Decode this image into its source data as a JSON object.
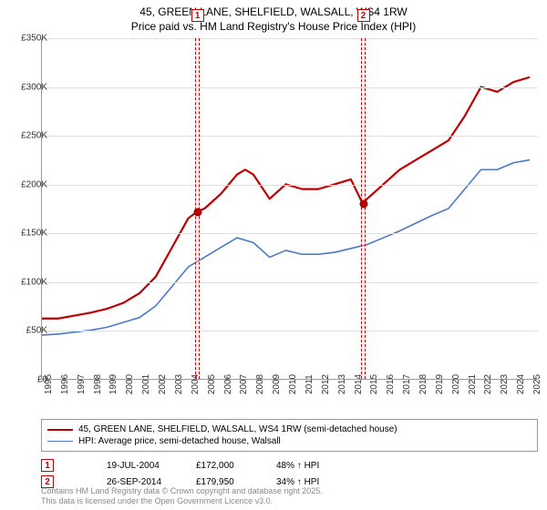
{
  "title_line1": "45, GREEN LANE, SHELFIELD, WALSALL, WS4 1RW",
  "title_line2": "Price paid vs. HM Land Registry's House Price Index (HPI)",
  "chart": {
    "type": "line",
    "background_color": "#ffffff",
    "grid_color": "#e0e0e0",
    "axis_color": "#999999",
    "x_min": 1995,
    "x_max": 2025.5,
    "y_min": 0,
    "y_max": 350000,
    "y_ticks": [
      0,
      50000,
      100000,
      150000,
      200000,
      250000,
      300000,
      350000
    ],
    "y_tick_labels": [
      "£0",
      "£50K",
      "£100K",
      "£150K",
      "£200K",
      "£250K",
      "£300K",
      "£350K"
    ],
    "x_ticks": [
      1995,
      1996,
      1997,
      1998,
      1999,
      2000,
      2001,
      2002,
      2003,
      2004,
      2005,
      2006,
      2007,
      2008,
      2009,
      2010,
      2011,
      2012,
      2013,
      2014,
      2015,
      2016,
      2017,
      2018,
      2019,
      2020,
      2021,
      2022,
      2023,
      2024,
      2025
    ],
    "label_fontsize": 10,
    "title_fontsize": 12,
    "line_width_red": 2.2,
    "line_width_blue": 1.6,
    "color_red": "#c00000",
    "color_blue": "#4a7ac7",
    "series_red": {
      "label": "45, GREEN LANE, SHELFIELD, WALSALL, WS4 1RW (semi-detached house)",
      "points": [
        [
          1995,
          62000
        ],
        [
          1996,
          62000
        ],
        [
          1997,
          65000
        ],
        [
          1998,
          68000
        ],
        [
          1999,
          72000
        ],
        [
          2000,
          78000
        ],
        [
          2001,
          88000
        ],
        [
          2002,
          105000
        ],
        [
          2003,
          135000
        ],
        [
          2004,
          165000
        ],
        [
          2004.55,
          172000
        ],
        [
          2005,
          175000
        ],
        [
          2006,
          190000
        ],
        [
          2007,
          210000
        ],
        [
          2007.5,
          215000
        ],
        [
          2008,
          210000
        ],
        [
          2009,
          185000
        ],
        [
          2010,
          200000
        ],
        [
          2011,
          195000
        ],
        [
          2012,
          195000
        ],
        [
          2013,
          200000
        ],
        [
          2014,
          205000
        ],
        [
          2014.73,
          179950
        ],
        [
          2015,
          185000
        ],
        [
          2016,
          200000
        ],
        [
          2017,
          215000
        ],
        [
          2018,
          225000
        ],
        [
          2019,
          235000
        ],
        [
          2020,
          245000
        ],
        [
          2021,
          270000
        ],
        [
          2022,
          300000
        ],
        [
          2023,
          295000
        ],
        [
          2024,
          305000
        ],
        [
          2025,
          310000
        ]
      ]
    },
    "series_blue": {
      "label": "HPI: Average price, semi-detached house, Walsall",
      "points": [
        [
          1995,
          45000
        ],
        [
          1996,
          46000
        ],
        [
          1997,
          48000
        ],
        [
          1998,
          50000
        ],
        [
          1999,
          53000
        ],
        [
          2000,
          58000
        ],
        [
          2001,
          63000
        ],
        [
          2002,
          75000
        ],
        [
          2003,
          95000
        ],
        [
          2004,
          115000
        ],
        [
          2005,
          125000
        ],
        [
          2006,
          135000
        ],
        [
          2007,
          145000
        ],
        [
          2008,
          140000
        ],
        [
          2009,
          125000
        ],
        [
          2010,
          132000
        ],
        [
          2011,
          128000
        ],
        [
          2012,
          128000
        ],
        [
          2013,
          130000
        ],
        [
          2014,
          134000
        ],
        [
          2015,
          138000
        ],
        [
          2016,
          145000
        ],
        [
          2017,
          152000
        ],
        [
          2018,
          160000
        ],
        [
          2019,
          168000
        ],
        [
          2020,
          175000
        ],
        [
          2021,
          195000
        ],
        [
          2022,
          215000
        ],
        [
          2023,
          215000
        ],
        [
          2024,
          222000
        ],
        [
          2025,
          225000
        ]
      ]
    },
    "vertical_bands": [
      {
        "x": 2004.55,
        "width_years": 0.25
      },
      {
        "x": 2014.73,
        "width_years": 0.25
      }
    ],
    "sale_markers": [
      {
        "num": "1",
        "x": 2004.55,
        "y": 172000,
        "box_y_offset": -32
      },
      {
        "num": "2",
        "x": 2014.73,
        "y": 179950,
        "box_y_offset": -32
      }
    ]
  },
  "legend": {
    "items": [
      {
        "color": "#c00000",
        "width": 2.5,
        "label_key": "chart.series_red.label"
      },
      {
        "color": "#4a7ac7",
        "width": 2,
        "label_key": "chart.series_blue.label"
      }
    ]
  },
  "sales": [
    {
      "num": "1",
      "date": "19-JUL-2004",
      "price": "£172,000",
      "hpi": "48% ↑ HPI"
    },
    {
      "num": "2",
      "date": "26-SEP-2014",
      "price": "£179,950",
      "hpi": "34% ↑ HPI"
    }
  ],
  "footer_line1": "Contains HM Land Registry data © Crown copyright and database right 2025.",
  "footer_line2": "This data is licensed under the Open Government Licence v3.0."
}
